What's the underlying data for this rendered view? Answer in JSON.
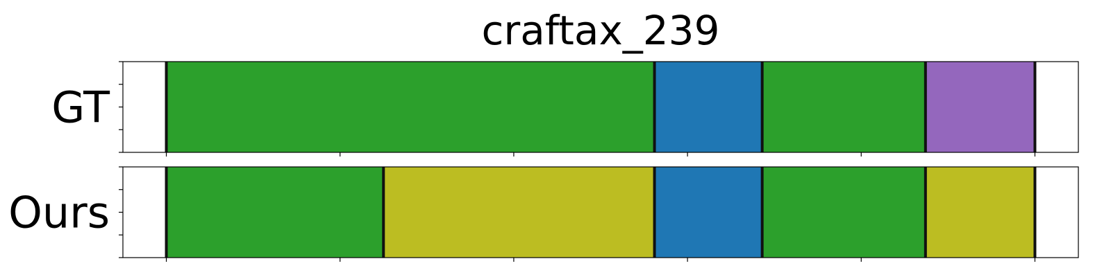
{
  "chart_data": {
    "type": "bar",
    "title": "craftax_239",
    "xlim": [
      0,
      11
    ],
    "xticks": [
      0.5,
      2.5,
      4.5,
      6.5,
      8.5,
      10.5
    ],
    "yticks_per_row": 5,
    "rows": [
      {
        "name": "GT",
        "segments": [
          {
            "start": 0.5,
            "end": 6.12,
            "color": "#2ca02c"
          },
          {
            "start": 6.12,
            "end": 7.36,
            "color": "#1f77b4"
          },
          {
            "start": 7.36,
            "end": 9.24,
            "color": "#2ca02c"
          },
          {
            "start": 9.24,
            "end": 10.5,
            "color": "#9467bd"
          }
        ]
      },
      {
        "name": "Ours",
        "segments": [
          {
            "start": 0.5,
            "end": 3.0,
            "color": "#2ca02c"
          },
          {
            "start": 3.0,
            "end": 6.12,
            "color": "#bcbd22"
          },
          {
            "start": 6.12,
            "end": 7.36,
            "color": "#1f77b4"
          },
          {
            "start": 7.36,
            "end": 9.24,
            "color": "#2ca02c"
          },
          {
            "start": 9.24,
            "end": 10.5,
            "color": "#bcbd22"
          }
        ]
      }
    ]
  }
}
